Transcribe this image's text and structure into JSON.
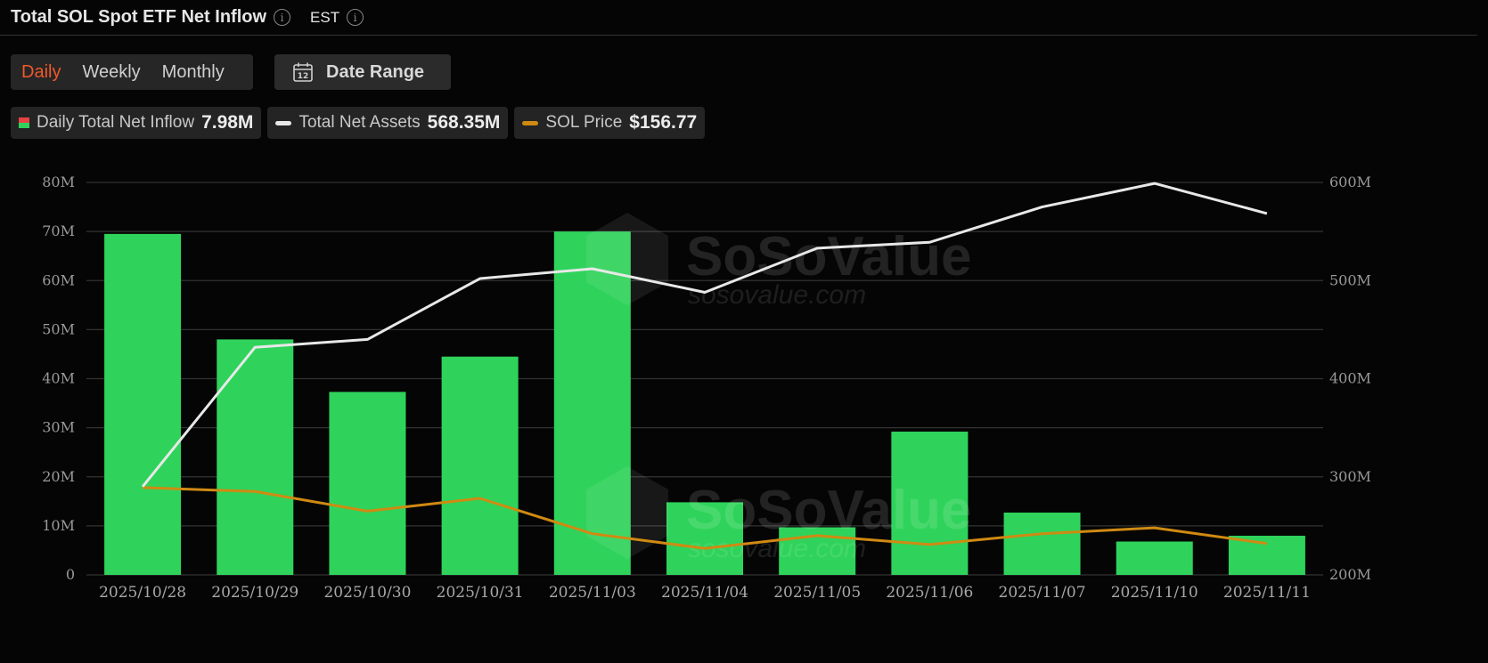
{
  "header": {
    "title": "Total SOL Spot ETF Net Inflow",
    "timezone": "EST"
  },
  "period_tabs": [
    {
      "label": "Daily",
      "active": true
    },
    {
      "label": "Weekly",
      "active": false
    },
    {
      "label": "Monthly",
      "active": false
    }
  ],
  "date_range": {
    "label": "Date Range",
    "icon_day": "12"
  },
  "legend": {
    "inflow": {
      "label": "Daily Total Net Inflow",
      "value": "7.98M"
    },
    "assets": {
      "label": "Total Net Assets",
      "value": "568.35M"
    },
    "price": {
      "label": "SOL Price",
      "value": "$156.77"
    }
  },
  "watermark": {
    "brand": "SoSoValue",
    "url": "sosovalue.com"
  },
  "colors": {
    "bar": "#2fd35b",
    "assets_line": "#e8e8e8",
    "price_line": "#d08a12",
    "accent": "#f0582a",
    "swatch_red": "#e84242"
  },
  "chart_data": {
    "type": "bar",
    "categories": [
      "2025/10/28",
      "2025/10/29",
      "2025/10/30",
      "2025/10/31",
      "2025/11/03",
      "2025/11/04",
      "2025/11/05",
      "2025/11/06",
      "2025/11/07",
      "2025/11/10",
      "2025/11/11"
    ],
    "series": [
      {
        "name": "Daily Total Net Inflow",
        "axis": "left",
        "type": "bar",
        "values": [
          69.5,
          48.0,
          37.3,
          44.5,
          70.0,
          14.8,
          9.7,
          29.2,
          12.7,
          6.8,
          7.98
        ]
      },
      {
        "name": "Total Net Assets",
        "axis": "right",
        "type": "line",
        "values": [
          290,
          432,
          440,
          502,
          512,
          488,
          533,
          539,
          575,
          599,
          568.35
        ]
      },
      {
        "name": "SOL Price",
        "axis": "right",
        "type": "line",
        "values": [
          289,
          285,
          265,
          278,
          242,
          227,
          240,
          231,
          242,
          248,
          232
        ]
      }
    ],
    "left_ticks": [
      "0",
      "10M",
      "20M",
      "30M",
      "40M",
      "50M",
      "60M",
      "70M",
      "80M"
    ],
    "left_ylim": [
      0,
      80
    ],
    "right_ticks": [
      "200M",
      "300M",
      "400M",
      "500M",
      "600M"
    ],
    "right_ylim": [
      200,
      600
    ],
    "grid": true,
    "legend_position": "top-left"
  }
}
